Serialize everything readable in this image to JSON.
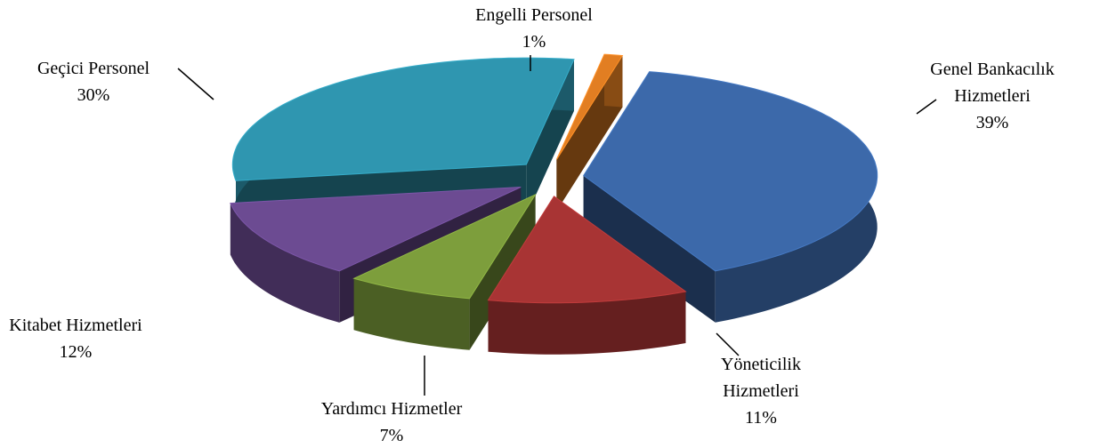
{
  "chart_data": {
    "type": "pie3d",
    "categories": [
      "Genel Bankacılık Hizmetleri",
      "Yöneticilik Hizmetleri",
      "Yardımcı Hizmetler",
      "Kitabet Hizmetleri",
      "Geçici Personel",
      "Engelli Personel"
    ],
    "values": [
      39,
      11,
      7,
      12,
      30,
      1
    ],
    "value_labels": [
      "39%",
      "11%",
      "7%",
      "12%",
      "30%",
      "1%"
    ],
    "colors": [
      "#3c69aa",
      "#a83434",
      "#7d9e3c",
      "#6c4b92",
      "#2f96b0",
      "#e27e22"
    ]
  }
}
